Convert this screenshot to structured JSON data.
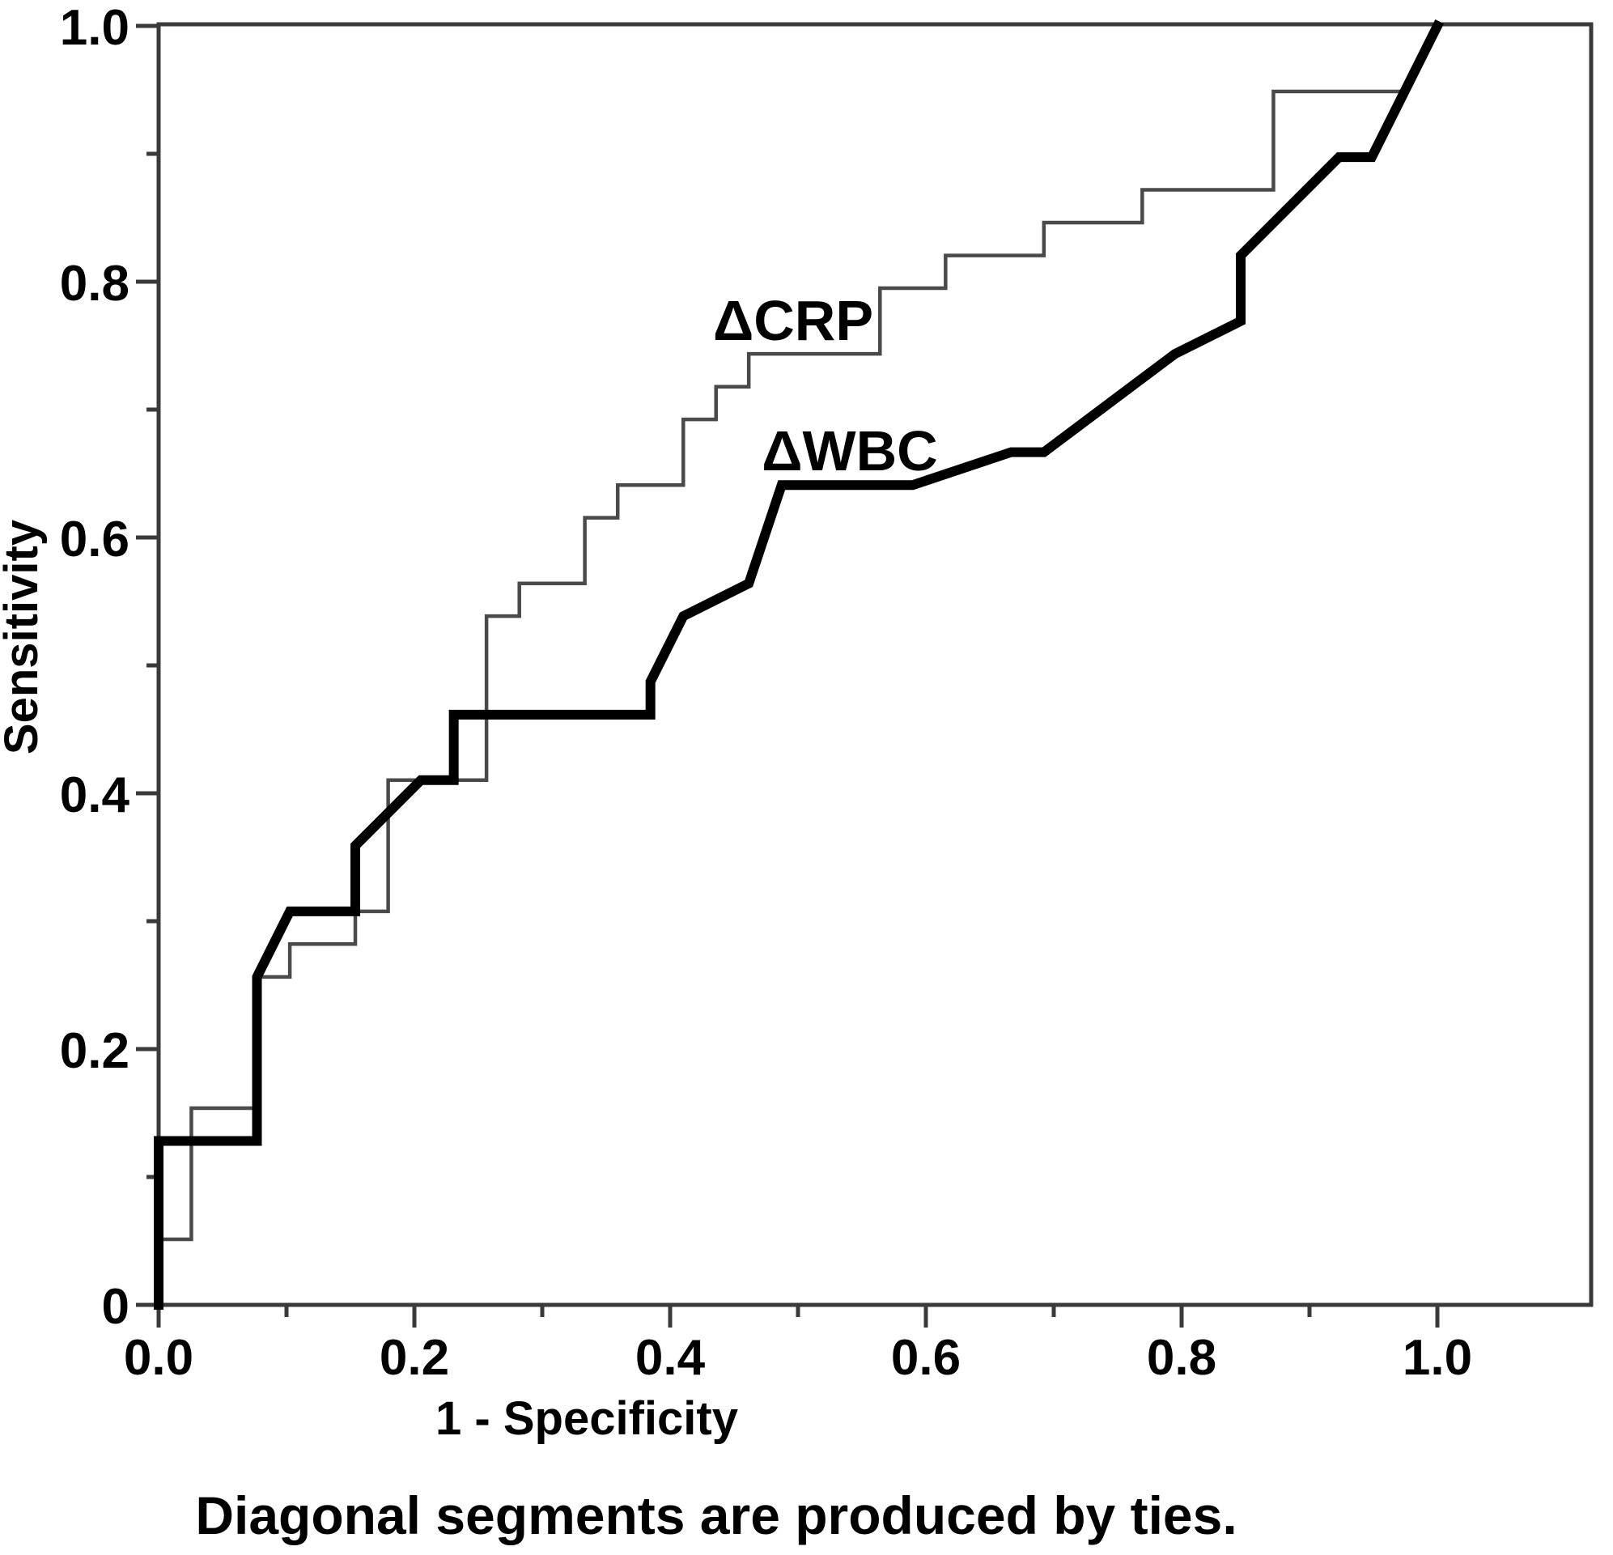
{
  "chart_data": {
    "type": "line",
    "subtype": "roc-step-curves",
    "title": "",
    "xlabel": "1 - Specificity",
    "ylabel": "Sensitivity",
    "caption": "Diagonal segments are produced by ties.",
    "xlim": [
      0,
      1.12
    ],
    "ylim": [
      0,
      1.0
    ],
    "grid": false,
    "legend_position": "inline-labels",
    "axis_color": "#3a3a3a",
    "x_tick_values": [
      0.0,
      0.2,
      0.4,
      0.6,
      0.8,
      1.0
    ],
    "x_tick_labels": [
      "0.0",
      "0.2",
      "0.4",
      "0.6",
      "0.8",
      "1.0"
    ],
    "x_minor_ticks": [
      0.1,
      0.3,
      0.5,
      0.7,
      0.9
    ],
    "y_tick_values": [
      0.0,
      0.2,
      0.4,
      0.6,
      0.8,
      1.0
    ],
    "y_tick_labels": [
      "0",
      "0.2",
      "0.4",
      "0.6",
      "0.8",
      "1.0"
    ],
    "y_minor_ticks": [
      0.1,
      0.3,
      0.5,
      0.7,
      0.9
    ],
    "series": [
      {
        "name": "ΔCRP",
        "color": "#4a4a4a",
        "stroke_width": 4.5,
        "label_pos": [
          0.4962,
          0.7703
        ],
        "points": [
          [
            0,
            0
          ],
          [
            0,
            0.0513
          ],
          [
            0.0256,
            0.0513
          ],
          [
            0.0256,
            0.1538
          ],
          [
            0.0769,
            0.1538
          ],
          [
            0.0769,
            0.2564
          ],
          [
            0.1026,
            0.2564
          ],
          [
            0.1026,
            0.2821
          ],
          [
            0.1538,
            0.2821
          ],
          [
            0.1538,
            0.3077
          ],
          [
            0.1795,
            0.3077
          ],
          [
            0.1795,
            0.4103
          ],
          [
            0.2564,
            0.4103
          ],
          [
            0.2564,
            0.5385
          ],
          [
            0.2821,
            0.5385
          ],
          [
            0.2821,
            0.5641
          ],
          [
            0.3333,
            0.5641
          ],
          [
            0.3333,
            0.6154
          ],
          [
            0.359,
            0.6154
          ],
          [
            0.359,
            0.641
          ],
          [
            0.4103,
            0.641
          ],
          [
            0.4103,
            0.6923
          ],
          [
            0.4359,
            0.6923
          ],
          [
            0.4359,
            0.7179
          ],
          [
            0.4615,
            0.7179
          ],
          [
            0.4615,
            0.7436
          ],
          [
            0.5641,
            0.7436
          ],
          [
            0.5641,
            0.7949
          ],
          [
            0.6154,
            0.7949
          ],
          [
            0.6154,
            0.8205
          ],
          [
            0.6923,
            0.8205
          ],
          [
            0.6923,
            0.8462
          ],
          [
            0.7692,
            0.8462
          ],
          [
            0.7692,
            0.8718
          ],
          [
            0.8718,
            0.8718
          ],
          [
            0.8718,
            0.9487
          ],
          [
            0.9744,
            0.9487
          ],
          [
            1,
            1
          ]
        ]
      },
      {
        "name": "ΔWBC",
        "color": "#000000",
        "stroke_width": 12,
        "label_pos": [
          0.5405,
          0.6684
        ],
        "points": [
          [
            0,
            0
          ],
          [
            0,
            0.1282
          ],
          [
            0.0769,
            0.1282
          ],
          [
            0.0769,
            0.2564
          ],
          [
            0.1026,
            0.3077
          ],
          [
            0.1538,
            0.3077
          ],
          [
            0.1538,
            0.359
          ],
          [
            0.2051,
            0.4103
          ],
          [
            0.2308,
            0.4103
          ],
          [
            0.2308,
            0.4615
          ],
          [
            0.3846,
            0.4615
          ],
          [
            0.3846,
            0.4872
          ],
          [
            0.4103,
            0.5385
          ],
          [
            0.4615,
            0.5641
          ],
          [
            0.4872,
            0.641
          ],
          [
            0.5897,
            0.641
          ],
          [
            0.6667,
            0.6667
          ],
          [
            0.6923,
            0.6667
          ],
          [
            0.7949,
            0.7436
          ],
          [
            0.8462,
            0.7692
          ],
          [
            0.8462,
            0.8205
          ],
          [
            0.9231,
            0.8974
          ],
          [
            0.9487,
            0.8974
          ],
          [
            1,
            1
          ]
        ]
      }
    ]
  }
}
